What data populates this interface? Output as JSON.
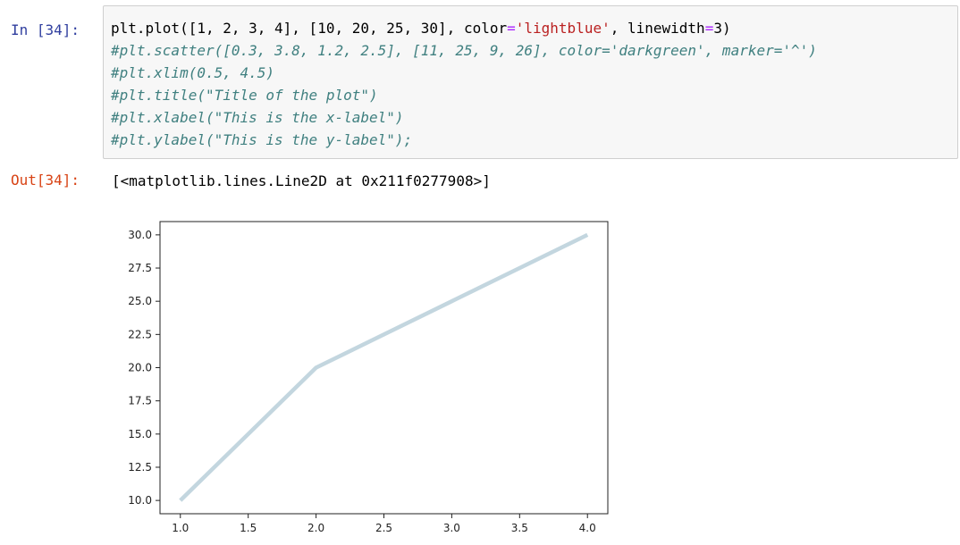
{
  "notebook": {
    "input_prompt": "In [34]:",
    "output_prompt": "Out[34]:",
    "code_lines": [
      [
        {
          "t": "plt.plot([1, 2, 3, 4], [10, 20, 25, 30], color"
        },
        {
          "t": "=",
          "c": "op"
        },
        {
          "t": "'lightblue'",
          "c": "str"
        },
        {
          "t": ", linewidth"
        },
        {
          "t": "=",
          "c": "op"
        },
        {
          "t": "3)"
        }
      ],
      [
        {
          "t": "#plt.scatter([0.3, 3.8, 1.2, 2.5], [11, 25, 9, 26], color='darkgreen', marker='^')",
          "c": "com"
        }
      ],
      [
        {
          "t": "#plt.xlim(0.5, 4.5)",
          "c": "com"
        }
      ],
      [
        {
          "t": "#plt.title(\"Title of the plot\")",
          "c": "com"
        }
      ],
      [
        {
          "t": "#plt.xlabel(\"This is the x-label\")",
          "c": "com"
        }
      ],
      [
        {
          "t": "#plt.ylabel(\"This is the y-label\");",
          "c": "com"
        }
      ]
    ],
    "output_text": "[<matplotlib.lines.Line2D at 0x211f0277908>]"
  },
  "chart_data": {
    "type": "line",
    "title": "",
    "xlabel": "",
    "ylabel": "",
    "xlim": [
      0.85,
      4.15
    ],
    "ylim": [
      9.0,
      31.0
    ],
    "x": [
      1,
      2,
      3,
      4
    ],
    "series": [
      {
        "values": [
          10,
          20,
          25,
          30
        ],
        "color": "#c3d6df"
      }
    ],
    "x_ticks": [
      1.0,
      1.5,
      2.0,
      2.5,
      3.0,
      3.5,
      4.0
    ],
    "x_tick_labels": [
      "1.0",
      "1.5",
      "2.0",
      "2.5",
      "3.0",
      "3.5",
      "4.0"
    ],
    "y_ticks": [
      10.0,
      12.5,
      15.0,
      17.5,
      20.0,
      22.5,
      25.0,
      27.5,
      30.0
    ],
    "y_tick_labels": [
      "10.0",
      "12.5",
      "15.0",
      "17.5",
      "20.0",
      "22.5",
      "25.0",
      "27.5",
      "30.0"
    ],
    "grid": false,
    "legend": "none"
  }
}
